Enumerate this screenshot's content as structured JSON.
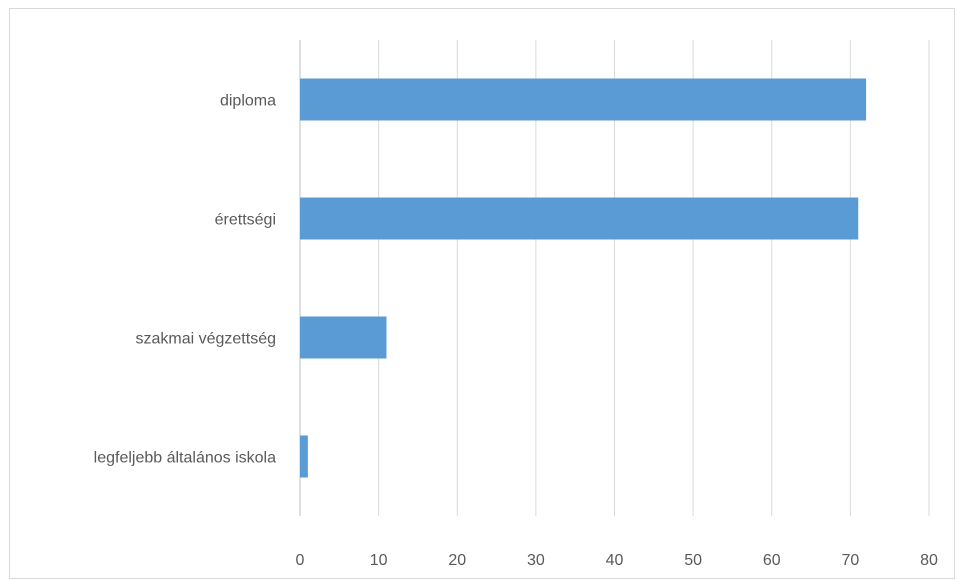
{
  "chart_data": {
    "type": "bar",
    "orientation": "horizontal",
    "categories": [
      "legfeljebb általános iskola",
      "szakmai végzettség",
      "érettségi",
      "diploma"
    ],
    "values": [
      1,
      11,
      71,
      72
    ],
    "title": "",
    "xlabel": "",
    "ylabel": "",
    "xlim": [
      0,
      80
    ],
    "x_ticks": [
      0,
      10,
      20,
      30,
      40,
      50,
      60,
      70,
      80
    ],
    "grid": "vertical",
    "legend": "none",
    "bar_color": "#5b9bd5",
    "grid_color": "#d9d9d9",
    "axis_color": "#bfbfbf",
    "text_color": "#595959"
  }
}
